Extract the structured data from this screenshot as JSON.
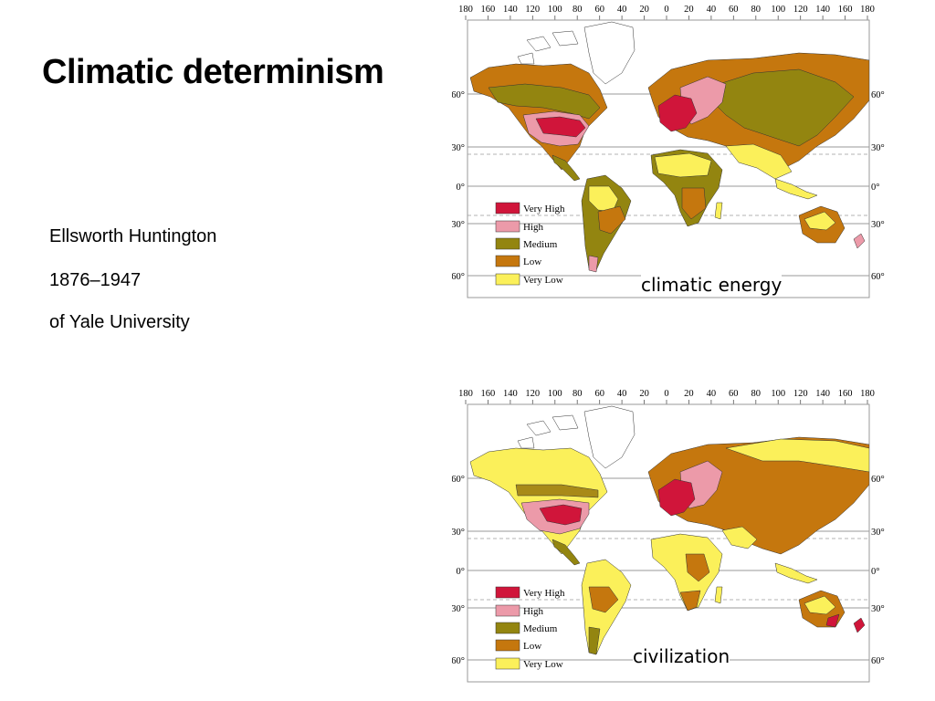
{
  "slide": {
    "title": "Climatic determinism",
    "author": "Ellsworth Huntington",
    "years": "1876–1947",
    "affiliation": "of Yale University"
  },
  "axes": {
    "lon_ticks": [
      "180",
      "160",
      "140",
      "120",
      "100",
      "80",
      "60",
      "40",
      "20",
      "0",
      "20",
      "40",
      "60",
      "80",
      "100",
      "120",
      "140",
      "160",
      "180"
    ],
    "lat_ticks": [
      "60°",
      "30°",
      "0°",
      "30°",
      "60°"
    ]
  },
  "legend": {
    "items": [
      {
        "label": "Very High",
        "color": "#d0153a"
      },
      {
        "label": "High",
        "color": "#ec9aa9"
      },
      {
        "label": "Medium",
        "color": "#938510"
      },
      {
        "label": "Low",
        "color": "#c5770e"
      },
      {
        "label": "Very Low",
        "color": "#fbf05a"
      }
    ]
  },
  "maps": [
    {
      "caption": "climatic energy"
    },
    {
      "caption": "civilization"
    }
  ]
}
